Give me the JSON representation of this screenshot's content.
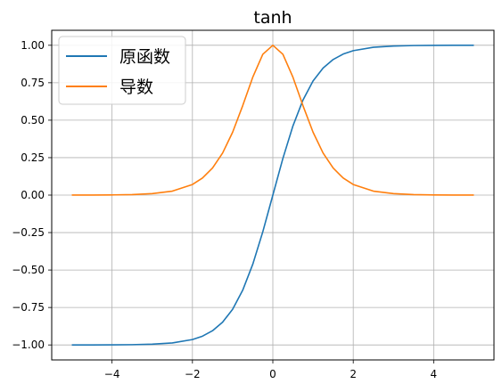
{
  "chart_data": {
    "type": "line",
    "title": "tanh",
    "xlabel": "",
    "ylabel": "",
    "xlim": [
      -5.5,
      5.5
    ],
    "ylim": [
      -1.1,
      1.1
    ],
    "xticks": [
      -4,
      -2,
      0,
      2,
      4
    ],
    "xtick_labels": [
      "−4",
      "−2",
      "0",
      "2",
      "4"
    ],
    "yticks": [
      1.0,
      0.75,
      0.5,
      0.25,
      0.0,
      -0.25,
      -0.5,
      -0.75,
      -1.0
    ],
    "ytick_labels": [
      "1.00",
      "0.75",
      "0.50",
      "0.25",
      "0.00",
      "−0.25",
      "−0.50",
      "−0.75",
      "−1.00"
    ],
    "grid": true,
    "legend_position": "upper-left",
    "x": [
      -5,
      -4.5,
      -4,
      -3.5,
      -3,
      -2.5,
      -2,
      -1.75,
      -1.5,
      -1.25,
      -1,
      -0.75,
      -0.5,
      -0.25,
      0,
      0.25,
      0.5,
      0.75,
      1,
      1.25,
      1.5,
      1.75,
      2,
      2.5,
      3,
      3.5,
      4,
      4.5,
      5
    ],
    "series": [
      {
        "name": "原函数",
        "color": "#1f77b4",
        "values": [
          -0.9999,
          -0.9998,
          -0.9993,
          -0.9982,
          -0.9951,
          -0.9866,
          -0.964,
          -0.9414,
          -0.9051,
          -0.8483,
          -0.7616,
          -0.6351,
          -0.4621,
          -0.2449,
          0,
          0.2449,
          0.4621,
          0.6351,
          0.7616,
          0.8483,
          0.9051,
          0.9414,
          0.964,
          0.9866,
          0.9951,
          0.9982,
          0.9993,
          0.9998,
          0.9999
        ]
      },
      {
        "name": "导数",
        "color": "#ff7f0e",
        "values": [
          0.0002,
          0.0005,
          0.0013,
          0.0036,
          0.0099,
          0.0266,
          0.0707,
          0.1138,
          0.1807,
          0.2805,
          0.42,
          0.5966,
          0.7864,
          0.94,
          1.0,
          0.94,
          0.7864,
          0.5966,
          0.42,
          0.2805,
          0.1807,
          0.1138,
          0.0707,
          0.0266,
          0.0099,
          0.0036,
          0.0013,
          0.0005,
          0.0002
        ]
      }
    ]
  }
}
